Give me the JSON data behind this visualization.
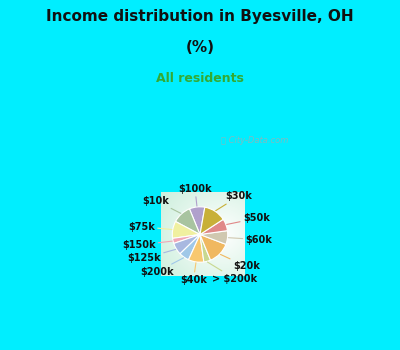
{
  "title_line1": "Income distribution in Byesville, OH",
  "title_line2": "(%)",
  "subtitle": "All residents",
  "title_color": "#111111",
  "subtitle_color": "#33aa33",
  "bg_outer": "#00eeff",
  "bg_chart_color": "#d0ede0",
  "watermark": "ⓘ City-Data.com",
  "labels": [
    "$100k",
    "$10k",
    "$75k",
    "$150k",
    "$125k",
    "$200k",
    "$40k",
    "> $200k",
    "$20k",
    "$60k",
    "$50k",
    "$30k"
  ],
  "values": [
    9,
    11,
    10,
    3,
    7,
    6,
    9,
    4,
    13,
    8,
    7,
    13
  ],
  "colors": [
    "#b0a0cc",
    "#a8c4a0",
    "#f0f0a0",
    "#f0a8b8",
    "#a8b8e0",
    "#a0c8e8",
    "#f8c870",
    "#c8d890",
    "#f0b860",
    "#d0c8b0",
    "#e08888",
    "#c8b038"
  ],
  "startangle": 80,
  "label_fontsize": 7,
  "label_color": "#111111"
}
